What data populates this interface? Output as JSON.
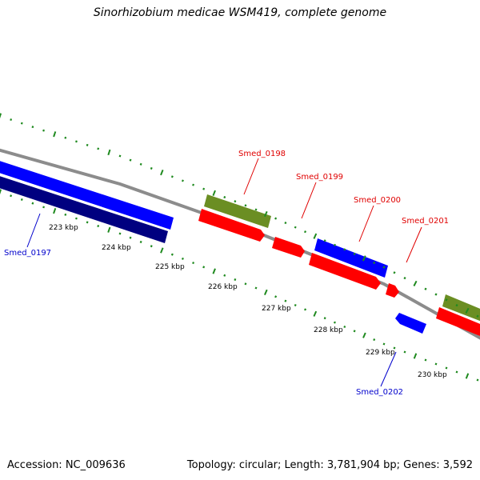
{
  "title": "Sinorhizobium medicae WSM419, complete genome",
  "accession_text": "Accession: NC_009636",
  "summary_text": "Topology: circular; Length: 3,781,904 bp; Genes: 3,592",
  "colors": {
    "backbone": "#8c8c8c",
    "tick": "#1f8a1f",
    "label_plus_strand": "#e00000",
    "label_minus_strand": "#0000cc",
    "gene_red": "#ff0000",
    "gene_blue": "#0000ff",
    "gene_dark_blue": "#000080",
    "gene_olive": "#6b8e23",
    "tick_label": "#000000"
  },
  "ticks": [
    {
      "label": "223 kbp"
    },
    {
      "label": "224 kbp"
    },
    {
      "label": "225 kbp"
    },
    {
      "label": "226 kbp"
    },
    {
      "label": "227 kbp"
    },
    {
      "label": "228 kbp"
    },
    {
      "label": "229 kbp"
    },
    {
      "label": "230 kbp"
    }
  ],
  "gene_labels": [
    {
      "name": "Smed_0197",
      "strand": "minus"
    },
    {
      "name": "Smed_0198",
      "strand": "plus"
    },
    {
      "name": "Smed_0199",
      "strand": "plus"
    },
    {
      "name": "Smed_0200",
      "strand": "plus"
    },
    {
      "name": "Smed_0201",
      "strand": "plus"
    },
    {
      "name": "Smed_0202",
      "strand": "minus"
    }
  ]
}
